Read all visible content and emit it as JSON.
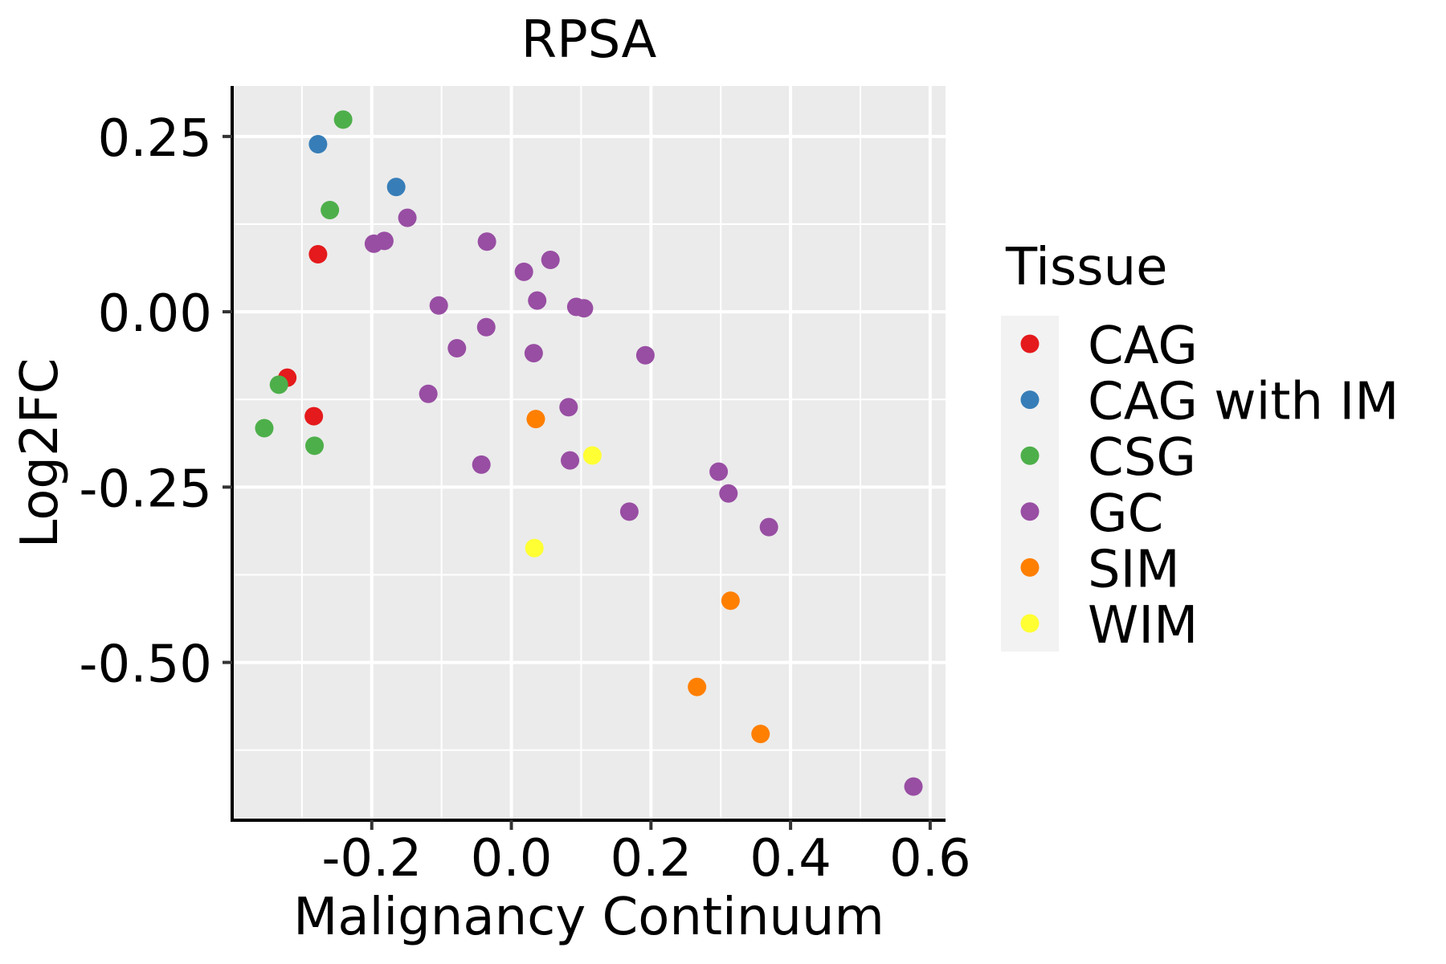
{
  "chart_data": {
    "type": "scatter",
    "title": "RPSA",
    "xlabel": "Malignancy Continuum",
    "ylabel": "Log2FC",
    "xlim": [
      -0.4,
      0.622
    ],
    "ylim": [
      -0.725,
      0.322
    ],
    "x_ticks": [
      -0.2,
      0.0,
      0.2,
      0.4,
      0.6
    ],
    "x_tick_labels": [
      "-0.2",
      "0.0",
      "0.2",
      "0.4",
      "0.6"
    ],
    "x_minor_grid": [
      -0.3,
      -0.1,
      0.1,
      0.3,
      0.5
    ],
    "y_ticks": [
      0.25,
      0.0,
      -0.25,
      -0.5
    ],
    "y_tick_labels": [
      "0.25",
      "0.00",
      "-0.25",
      "-0.50"
    ],
    "y_minor_grid": [
      0.125,
      -0.125,
      -0.375,
      -0.625
    ],
    "grid": true,
    "background": "#EBEBEB",
    "legend": {
      "title": "Tissue",
      "placement": "right",
      "entries": [
        {
          "label": "CAG",
          "color": "#E41A1C"
        },
        {
          "label": "CAG with IM",
          "color": "#377EB8"
        },
        {
          "label": "CSG",
          "color": "#4DAF4A"
        },
        {
          "label": "GC",
          "color": "#984EA3"
        },
        {
          "label": "SIM",
          "color": "#FF7F00"
        },
        {
          "label": "WIM",
          "color": "#FFFF33"
        }
      ]
    },
    "series": [
      {
        "name": "CAG",
        "color": "#E41A1C",
        "points": [
          {
            "x": -0.277,
            "y": 0.082
          },
          {
            "x": -0.321,
            "y": -0.094
          },
          {
            "x": -0.283,
            "y": -0.149
          }
        ]
      },
      {
        "name": "CAG with IM",
        "color": "#377EB8",
        "points": [
          {
            "x": -0.277,
            "y": 0.239
          },
          {
            "x": -0.165,
            "y": 0.178
          }
        ]
      },
      {
        "name": "CSG",
        "color": "#4DAF4A",
        "points": [
          {
            "x": -0.241,
            "y": 0.274
          },
          {
            "x": -0.26,
            "y": 0.145
          },
          {
            "x": -0.333,
            "y": -0.104
          },
          {
            "x": -0.354,
            "y": -0.166
          },
          {
            "x": -0.282,
            "y": -0.191
          }
        ]
      },
      {
        "name": "GC",
        "color": "#984EA3",
        "points": [
          {
            "x": -0.149,
            "y": 0.134
          },
          {
            "x": -0.182,
            "y": 0.101
          },
          {
            "x": -0.197,
            "y": 0.097
          },
          {
            "x": -0.035,
            "y": 0.1
          },
          {
            "x": 0.056,
            "y": 0.074
          },
          {
            "x": 0.018,
            "y": 0.057
          },
          {
            "x": 0.037,
            "y": 0.016
          },
          {
            "x": -0.104,
            "y": 0.009
          },
          {
            "x": 0.093,
            "y": 0.007
          },
          {
            "x": 0.104,
            "y": 0.005
          },
          {
            "x": -0.036,
            "y": -0.022
          },
          {
            "x": -0.078,
            "y": -0.052
          },
          {
            "x": 0.032,
            "y": -0.059
          },
          {
            "x": 0.192,
            "y": -0.062
          },
          {
            "x": -0.119,
            "y": -0.117
          },
          {
            "x": 0.082,
            "y": -0.136
          },
          {
            "x": -0.043,
            "y": -0.218
          },
          {
            "x": 0.084,
            "y": -0.212
          },
          {
            "x": 0.297,
            "y": -0.228
          },
          {
            "x": 0.311,
            "y": -0.259
          },
          {
            "x": 0.169,
            "y": -0.285
          },
          {
            "x": 0.369,
            "y": -0.307
          },
          {
            "x": 0.576,
            "y": -0.677
          }
        ]
      },
      {
        "name": "SIM",
        "color": "#FF7F00",
        "points": [
          {
            "x": 0.035,
            "y": -0.153
          },
          {
            "x": 0.314,
            "y": -0.412
          },
          {
            "x": 0.266,
            "y": -0.535
          },
          {
            "x": 0.357,
            "y": -0.602
          }
        ]
      },
      {
        "name": "WIM",
        "color": "#FFFF33",
        "points": [
          {
            "x": 0.116,
            "y": -0.205
          },
          {
            "x": 0.033,
            "y": -0.337
          }
        ]
      }
    ]
  }
}
